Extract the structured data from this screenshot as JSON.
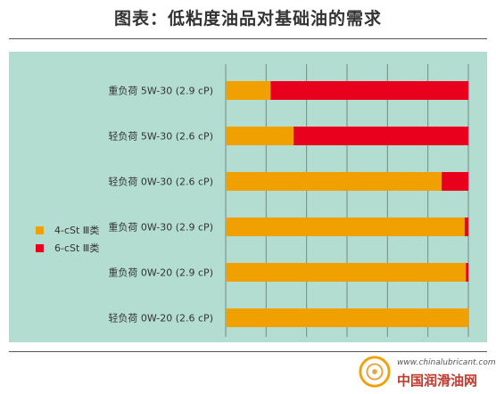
{
  "title": "图表：低粘度油品对基础油的需求",
  "legend": [
    {
      "label": "4-cSt Ⅲ类",
      "color": "#f0a000"
    },
    {
      "label": "6-cSt Ⅲ类",
      "color": "#e8001c"
    }
  ],
  "watermark": {
    "url": "www.chinalubricant.com",
    "name": "中国润滑油网"
  },
  "chart_data": {
    "type": "bar",
    "orientation": "horizontal",
    "stacked": true,
    "percent": true,
    "categories": [
      "重负荷 5W-30 (2.9 cP)",
      "轻负荷 5W-30 (2.6 cP)",
      "轻负荷 0W-30 (2.6 cP)",
      "重负荷 0W-30 (2.9 cP)",
      "重负荷 0W-20 (2.9 cP)",
      "轻负荷 0W-20 (2.6 cP)"
    ],
    "series": [
      {
        "name": "4-cSt Ⅲ类",
        "color": "#f0a000",
        "values": [
          18.5,
          28,
          89,
          98.5,
          99,
          100
        ]
      },
      {
        "name": "6-cSt Ⅲ类",
        "color": "#e8001c",
        "values": [
          81.5,
          72,
          11,
          1.5,
          1,
          0
        ]
      }
    ],
    "xlim": [
      0,
      100
    ],
    "grid": true,
    "legend_position": "left"
  }
}
